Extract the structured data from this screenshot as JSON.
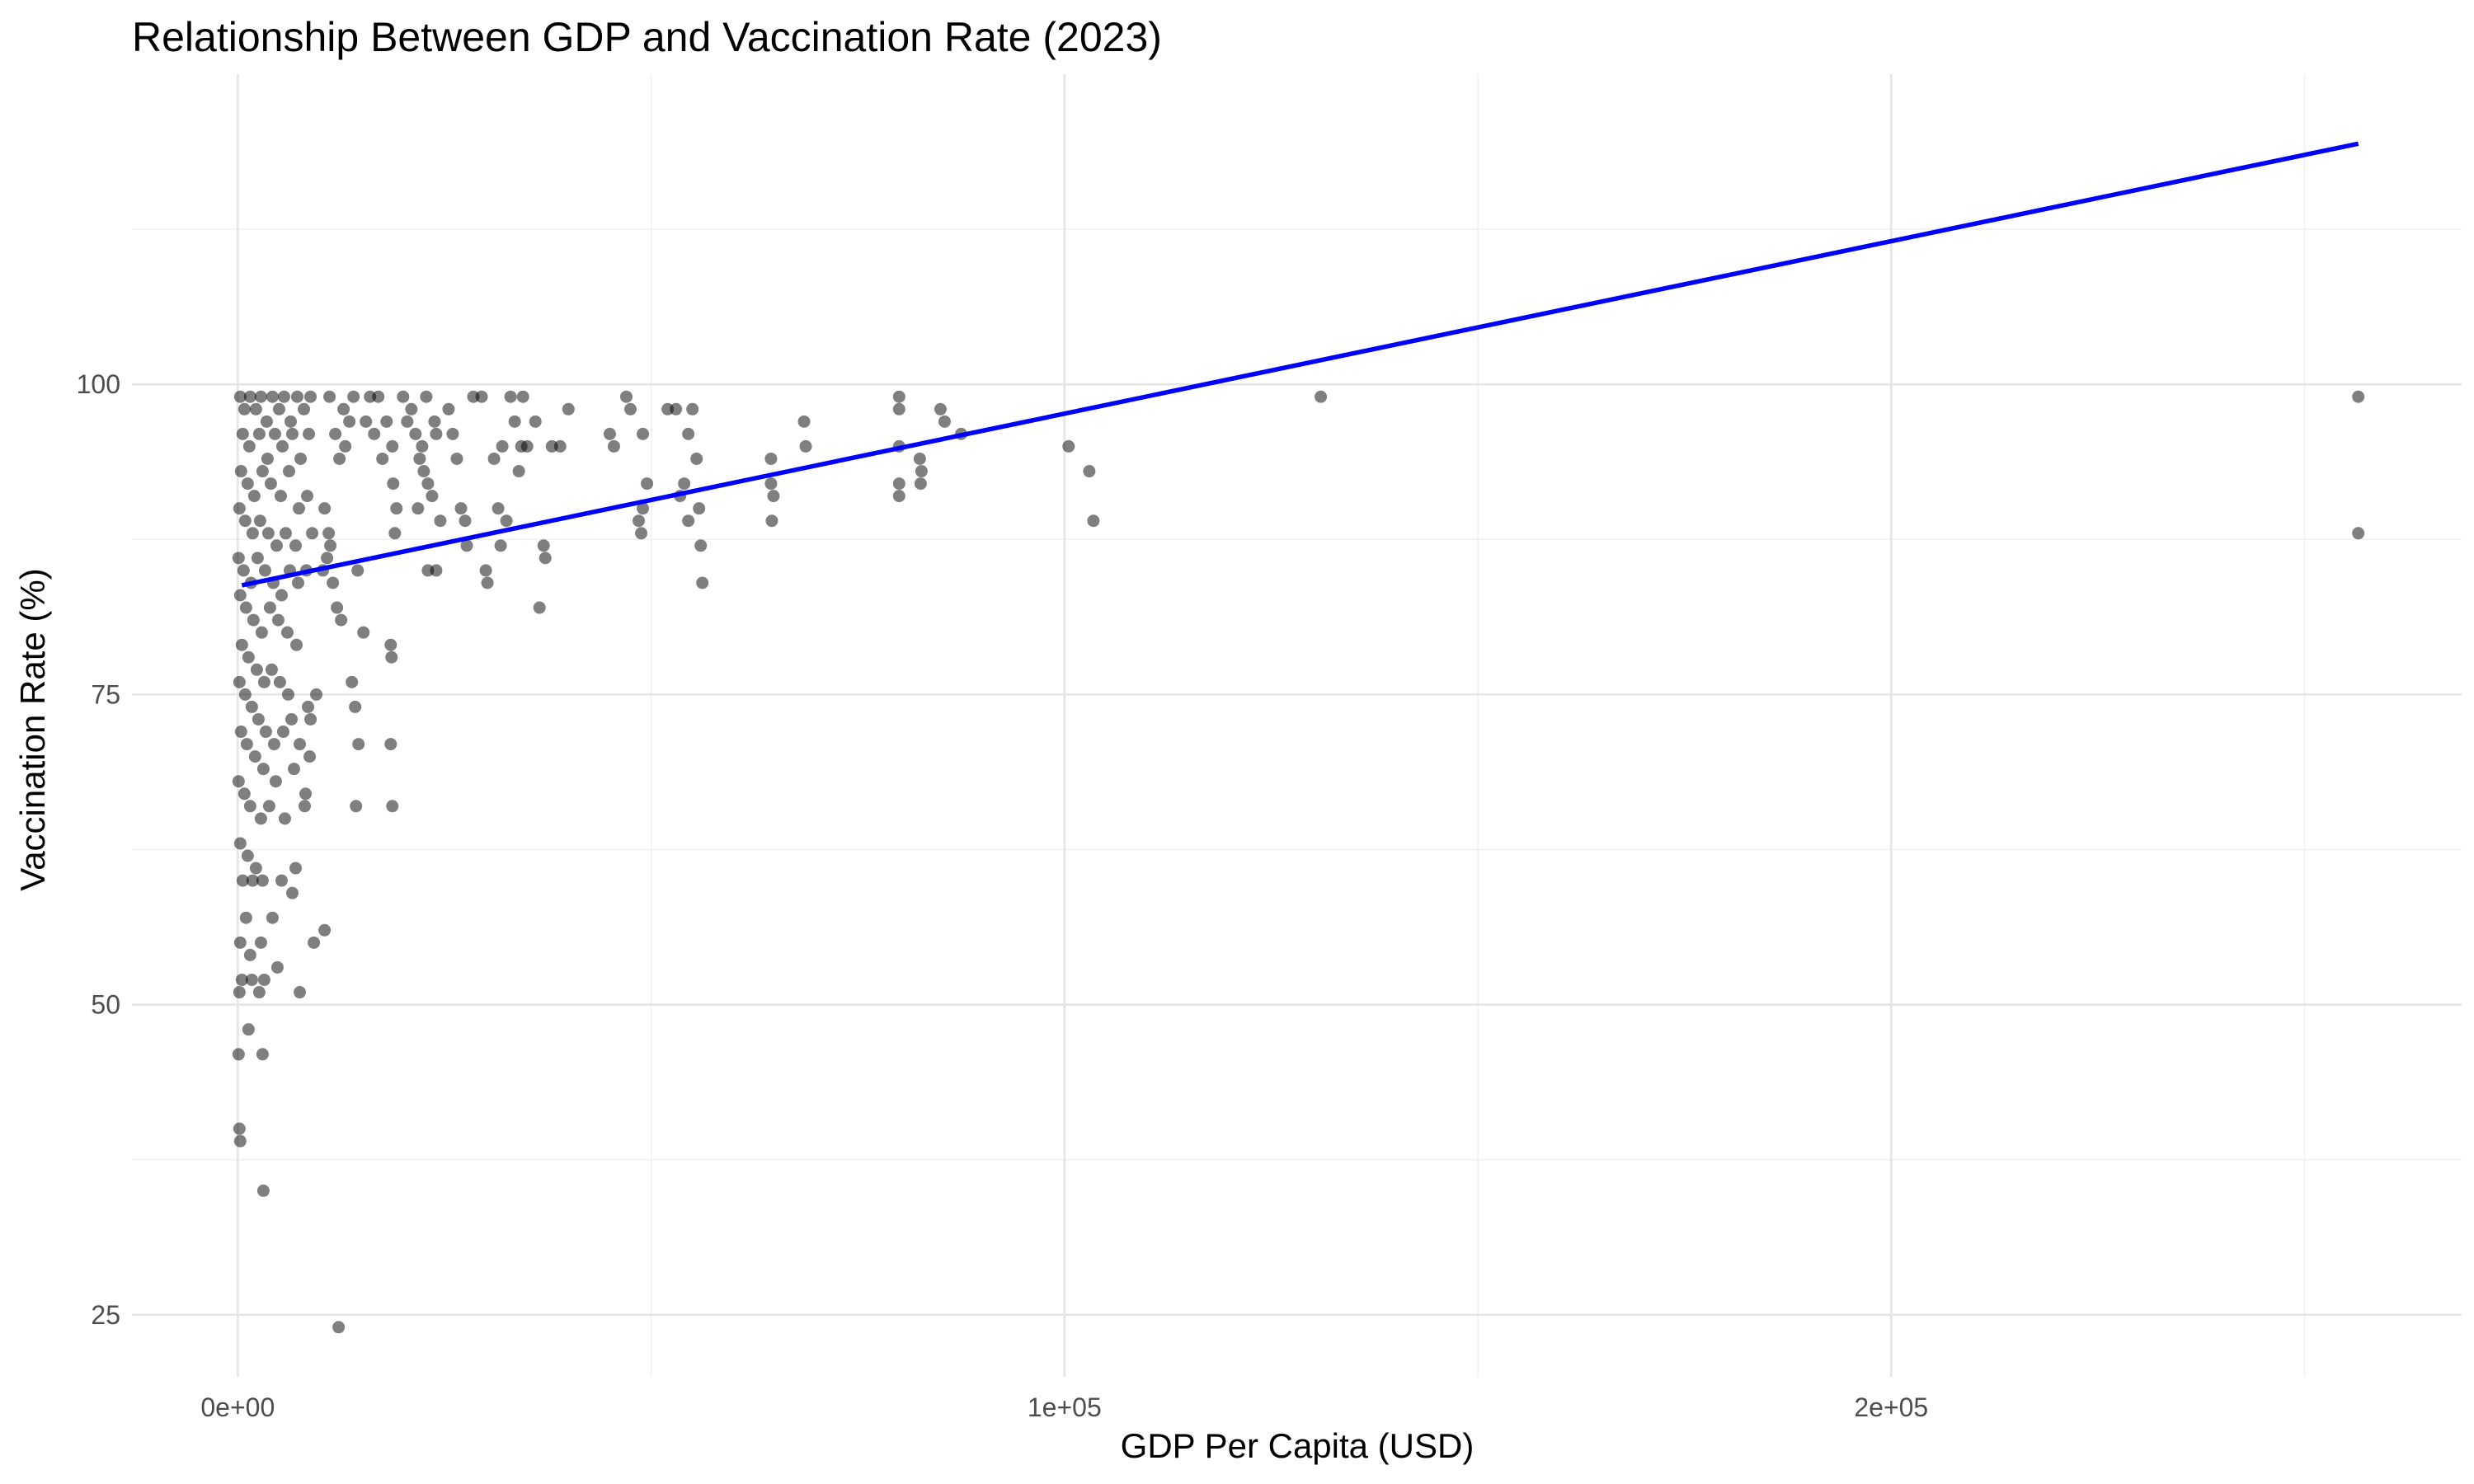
{
  "chart_data": {
    "type": "scatter",
    "title": "Relationship Between GDP and Vaccination Rate (2023)",
    "xlabel": "GDP Per Capita (USD)",
    "ylabel": "Vaccination Rate (%)",
    "xlim": [
      -12800,
      269000
    ],
    "ylim": [
      20,
      125
    ],
    "x_ticks": [
      0,
      100000,
      200000
    ],
    "x_tick_labels": [
      "0e+00",
      "1e+05",
      "2e+05"
    ],
    "x_minor_ticks": [
      50000,
      150000,
      250000
    ],
    "y_ticks": [
      25,
      50,
      75,
      100
    ],
    "y_tick_labels": [
      "25",
      "50",
      "75",
      "100"
    ],
    "y_minor_ticks": [
      37.5,
      62.5,
      87.5,
      112.5
    ],
    "grid": true,
    "point_color": "#000000",
    "point_opacity": 0.5,
    "trend_color": "#0000ff",
    "trend_line": {
      "x": [
        500,
        256500
      ],
      "y": [
        83.8,
        119.4
      ]
    },
    "points": [
      {
        "x": 300,
        "y": 99
      },
      {
        "x": 800,
        "y": 98
      },
      {
        "x": 1500,
        "y": 99
      },
      {
        "x": 2200,
        "y": 98
      },
      {
        "x": 2800,
        "y": 99
      },
      {
        "x": 3500,
        "y": 97
      },
      {
        "x": 4200,
        "y": 99
      },
      {
        "x": 5000,
        "y": 98
      },
      {
        "x": 5600,
        "y": 99
      },
      {
        "x": 6400,
        "y": 97
      },
      {
        "x": 7200,
        "y": 99
      },
      {
        "x": 8000,
        "y": 98
      },
      {
        "x": 8800,
        "y": 99
      },
      {
        "x": 600,
        "y": 96
      },
      {
        "x": 1400,
        "y": 95
      },
      {
        "x": 2600,
        "y": 96
      },
      {
        "x": 3600,
        "y": 94
      },
      {
        "x": 4500,
        "y": 96
      },
      {
        "x": 5400,
        "y": 95
      },
      {
        "x": 6600,
        "y": 96
      },
      {
        "x": 7600,
        "y": 94
      },
      {
        "x": 8600,
        "y": 96
      },
      {
        "x": 400,
        "y": 93
      },
      {
        "x": 1200,
        "y": 92
      },
      {
        "x": 2000,
        "y": 91
      },
      {
        "x": 3000,
        "y": 93
      },
      {
        "x": 4000,
        "y": 92
      },
      {
        "x": 5200,
        "y": 91
      },
      {
        "x": 6200,
        "y": 93
      },
      {
        "x": 7400,
        "y": 90
      },
      {
        "x": 8400,
        "y": 91
      },
      {
        "x": 200,
        "y": 90
      },
      {
        "x": 900,
        "y": 89
      },
      {
        "x": 1800,
        "y": 88
      },
      {
        "x": 2700,
        "y": 89
      },
      {
        "x": 3700,
        "y": 88
      },
      {
        "x": 4700,
        "y": 87
      },
      {
        "x": 5800,
        "y": 88
      },
      {
        "x": 7000,
        "y": 87
      },
      {
        "x": 9000,
        "y": 88
      },
      {
        "x": 100,
        "y": 86
      },
      {
        "x": 700,
        "y": 85
      },
      {
        "x": 1600,
        "y": 84
      },
      {
        "x": 2400,
        "y": 86
      },
      {
        "x": 3300,
        "y": 85
      },
      {
        "x": 4300,
        "y": 84
      },
      {
        "x": 5300,
        "y": 83
      },
      {
        "x": 6300,
        "y": 85
      },
      {
        "x": 7300,
        "y": 84
      },
      {
        "x": 8300,
        "y": 85
      },
      {
        "x": 300,
        "y": 83
      },
      {
        "x": 1000,
        "y": 82
      },
      {
        "x": 1900,
        "y": 81
      },
      {
        "x": 2900,
        "y": 80
      },
      {
        "x": 3900,
        "y": 82
      },
      {
        "x": 4900,
        "y": 81
      },
      {
        "x": 6000,
        "y": 80
      },
      {
        "x": 7100,
        "y": 79
      },
      {
        "x": 500,
        "y": 79
      },
      {
        "x": 1300,
        "y": 78
      },
      {
        "x": 2300,
        "y": 77
      },
      {
        "x": 3200,
        "y": 76
      },
      {
        "x": 4100,
        "y": 77
      },
      {
        "x": 5100,
        "y": 76
      },
      {
        "x": 6100,
        "y": 75
      },
      {
        "x": 8500,
        "y": 74
      },
      {
        "x": 200,
        "y": 76
      },
      {
        "x": 900,
        "y": 75
      },
      {
        "x": 1700,
        "y": 74
      },
      {
        "x": 2500,
        "y": 73
      },
      {
        "x": 3400,
        "y": 72
      },
      {
        "x": 4400,
        "y": 71
      },
      {
        "x": 5500,
        "y": 72
      },
      {
        "x": 6500,
        "y": 73
      },
      {
        "x": 7500,
        "y": 71
      },
      {
        "x": 8700,
        "y": 70
      },
      {
        "x": 400,
        "y": 72
      },
      {
        "x": 1100,
        "y": 71
      },
      {
        "x": 2100,
        "y": 70
      },
      {
        "x": 3100,
        "y": 69
      },
      {
        "x": 4600,
        "y": 68
      },
      {
        "x": 6800,
        "y": 69
      },
      {
        "x": 8200,
        "y": 67
      },
      {
        "x": 100,
        "y": 68
      },
      {
        "x": 800,
        "y": 67
      },
      {
        "x": 1500,
        "y": 66
      },
      {
        "x": 2800,
        "y": 65
      },
      {
        "x": 3800,
        "y": 66
      },
      {
        "x": 5700,
        "y": 65
      },
      {
        "x": 8100,
        "y": 66
      },
      {
        "x": 300,
        "y": 63
      },
      {
        "x": 1200,
        "y": 62
      },
      {
        "x": 2200,
        "y": 61
      },
      {
        "x": 600,
        "y": 60
      },
      {
        "x": 1800,
        "y": 60
      },
      {
        "x": 3000,
        "y": 60
      },
      {
        "x": 5300,
        "y": 60
      },
      {
        "x": 7000,
        "y": 61
      },
      {
        "x": 6600,
        "y": 59
      },
      {
        "x": 1000,
        "y": 57
      },
      {
        "x": 4200,
        "y": 57
      },
      {
        "x": 300,
        "y": 55
      },
      {
        "x": 1500,
        "y": 54
      },
      {
        "x": 2800,
        "y": 55
      },
      {
        "x": 4800,
        "y": 53
      },
      {
        "x": 500,
        "y": 52
      },
      {
        "x": 1700,
        "y": 52
      },
      {
        "x": 3200,
        "y": 52
      },
      {
        "x": 200,
        "y": 51
      },
      {
        "x": 2600,
        "y": 51
      },
      {
        "x": 7500,
        "y": 51
      },
      {
        "x": 1300,
        "y": 48
      },
      {
        "x": 100,
        "y": 46
      },
      {
        "x": 3000,
        "y": 46
      },
      {
        "x": 200,
        "y": 40
      },
      {
        "x": 300,
        "y": 39
      },
      {
        "x": 3100,
        "y": 35
      },
      {
        "x": 12200,
        "y": 24
      },
      {
        "x": 10500,
        "y": 90
      },
      {
        "x": 11000,
        "y": 88
      },
      {
        "x": 10800,
        "y": 86
      },
      {
        "x": 11500,
        "y": 84
      },
      {
        "x": 12000,
        "y": 82
      },
      {
        "x": 12500,
        "y": 81
      },
      {
        "x": 10300,
        "y": 85
      },
      {
        "x": 11200,
        "y": 87
      },
      {
        "x": 9500,
        "y": 75
      },
      {
        "x": 8800,
        "y": 73
      },
      {
        "x": 9200,
        "y": 55
      },
      {
        "x": 10500,
        "y": 56
      },
      {
        "x": 11800,
        "y": 96
      },
      {
        "x": 12800,
        "y": 98
      },
      {
        "x": 13500,
        "y": 97
      },
      {
        "x": 14000,
        "y": 99
      },
      {
        "x": 12300,
        "y": 94
      },
      {
        "x": 11100,
        "y": 99
      },
      {
        "x": 13000,
        "y": 95
      },
      {
        "x": 14500,
        "y": 85
      },
      {
        "x": 13800,
        "y": 76
      },
      {
        "x": 14200,
        "y": 74
      },
      {
        "x": 14600,
        "y": 71
      },
      {
        "x": 14300,
        "y": 66
      },
      {
        "x": 15200,
        "y": 80
      },
      {
        "x": 15500,
        "y": 97
      },
      {
        "x": 16000,
        "y": 99
      },
      {
        "x": 16500,
        "y": 96
      },
      {
        "x": 17500,
        "y": 94
      },
      {
        "x": 18000,
        "y": 97
      },
      {
        "x": 18800,
        "y": 92
      },
      {
        "x": 19200,
        "y": 90
      },
      {
        "x": 19000,
        "y": 88
      },
      {
        "x": 18700,
        "y": 95
      },
      {
        "x": 17000,
        "y": 99
      },
      {
        "x": 18500,
        "y": 79
      },
      {
        "x": 18600,
        "y": 78
      },
      {
        "x": 18500,
        "y": 71
      },
      {
        "x": 18700,
        "y": 66
      },
      {
        "x": 20000,
        "y": 99
      },
      {
        "x": 21000,
        "y": 98
      },
      {
        "x": 21500,
        "y": 96
      },
      {
        "x": 22000,
        "y": 94
      },
      {
        "x": 22500,
        "y": 93
      },
      {
        "x": 23000,
        "y": 92
      },
      {
        "x": 21800,
        "y": 90
      },
      {
        "x": 23500,
        "y": 91
      },
      {
        "x": 24500,
        "y": 89
      },
      {
        "x": 23000,
        "y": 85
      },
      {
        "x": 24000,
        "y": 85
      },
      {
        "x": 20500,
        "y": 97
      },
      {
        "x": 22800,
        "y": 99
      },
      {
        "x": 23800,
        "y": 97
      },
      {
        "x": 24000,
        "y": 96
      },
      {
        "x": 22300,
        "y": 95
      },
      {
        "x": 26000,
        "y": 96
      },
      {
        "x": 26500,
        "y": 94
      },
      {
        "x": 25500,
        "y": 98
      },
      {
        "x": 27000,
        "y": 90
      },
      {
        "x": 27500,
        "y": 89
      },
      {
        "x": 27700,
        "y": 87
      },
      {
        "x": 28500,
        "y": 99
      },
      {
        "x": 29500,
        "y": 99
      },
      {
        "x": 30000,
        "y": 85
      },
      {
        "x": 30200,
        "y": 84
      },
      {
        "x": 31000,
        "y": 94
      },
      {
        "x": 31500,
        "y": 90
      },
      {
        "x": 31800,
        "y": 87
      },
      {
        "x": 32000,
        "y": 95
      },
      {
        "x": 32500,
        "y": 89
      },
      {
        "x": 33000,
        "y": 99
      },
      {
        "x": 33500,
        "y": 97
      },
      {
        "x": 34000,
        "y": 93
      },
      {
        "x": 34300,
        "y": 95
      },
      {
        "x": 34500,
        "y": 99
      },
      {
        "x": 35000,
        "y": 95
      },
      {
        "x": 36000,
        "y": 97
      },
      {
        "x": 36500,
        "y": 82
      },
      {
        "x": 37000,
        "y": 87
      },
      {
        "x": 37200,
        "y": 86
      },
      {
        "x": 38000,
        "y": 95
      },
      {
        "x": 39000,
        "y": 95
      },
      {
        "x": 40000,
        "y": 98
      },
      {
        "x": 45000,
        "y": 96
      },
      {
        "x": 45500,
        "y": 95
      },
      {
        "x": 47000,
        "y": 99
      },
      {
        "x": 47500,
        "y": 98
      },
      {
        "x": 49000,
        "y": 96
      },
      {
        "x": 49500,
        "y": 92
      },
      {
        "x": 49000,
        "y": 90
      },
      {
        "x": 48500,
        "y": 89
      },
      {
        "x": 48800,
        "y": 88
      },
      {
        "x": 52000,
        "y": 98
      },
      {
        "x": 53000,
        "y": 98
      },
      {
        "x": 53500,
        "y": 91
      },
      {
        "x": 54500,
        "y": 96
      },
      {
        "x": 55000,
        "y": 98
      },
      {
        "x": 54000,
        "y": 92
      },
      {
        "x": 55500,
        "y": 94
      },
      {
        "x": 55800,
        "y": 90
      },
      {
        "x": 56000,
        "y": 87
      },
      {
        "x": 56200,
        "y": 84
      },
      {
        "x": 54500,
        "y": 89
      },
      {
        "x": 64500,
        "y": 94
      },
      {
        "x": 64500,
        "y": 92
      },
      {
        "x": 64800,
        "y": 91
      },
      {
        "x": 64600,
        "y": 89
      },
      {
        "x": 68500,
        "y": 97
      },
      {
        "x": 68700,
        "y": 95
      },
      {
        "x": 80000,
        "y": 99
      },
      {
        "x": 80000,
        "y": 98
      },
      {
        "x": 80000,
        "y": 95
      },
      {
        "x": 80000,
        "y": 92
      },
      {
        "x": 80000,
        "y": 91
      },
      {
        "x": 82500,
        "y": 94
      },
      {
        "x": 82700,
        "y": 93
      },
      {
        "x": 82600,
        "y": 92
      },
      {
        "x": 85000,
        "y": 98
      },
      {
        "x": 85500,
        "y": 97
      },
      {
        "x": 87500,
        "y": 96
      },
      {
        "x": 100500,
        "y": 95
      },
      {
        "x": 103000,
        "y": 93
      },
      {
        "x": 103500,
        "y": 89
      },
      {
        "x": 131000,
        "y": 99
      },
      {
        "x": 256500,
        "y": 99
      },
      {
        "x": 256500,
        "y": 88
      }
    ]
  }
}
